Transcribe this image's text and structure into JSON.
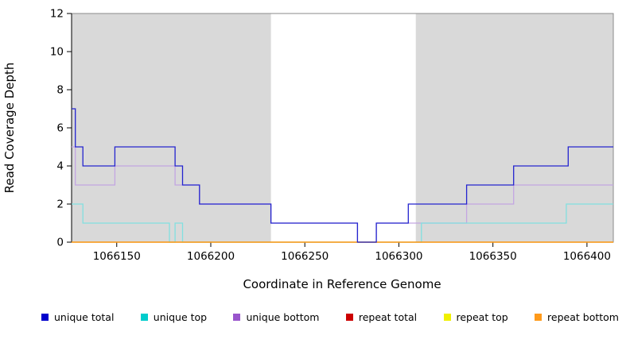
{
  "chart_data": {
    "type": "line",
    "subtype": "step",
    "title": "",
    "xlabel": "Coordinate in Reference Genome",
    "ylabel": "Read Coverage Depth",
    "xlim": [
      1066126,
      1066414
    ],
    "ylim": [
      0,
      12
    ],
    "x_ticks": [
      1066150,
      1066200,
      1066250,
      1066300,
      1066350,
      1066400
    ],
    "y_ticks": [
      0,
      2,
      4,
      6,
      8,
      10,
      12
    ],
    "grid": false,
    "legend_position": "bottom",
    "background_color": "#ffffff",
    "shaded_region_color": "#d9d9d9",
    "shaded_regions": [
      {
        "x0": 1066126,
        "x1": 1066232
      },
      {
        "x0": 1066309,
        "x1": 1066414
      }
    ],
    "series": [
      {
        "name": "unique total",
        "color": "#2424cf",
        "legend_color": "#0000cc",
        "points": [
          [
            1066126,
            7
          ],
          [
            1066128,
            5
          ],
          [
            1066132,
            4
          ],
          [
            1066149,
            5
          ],
          [
            1066181,
            4
          ],
          [
            1066185,
            3
          ],
          [
            1066194,
            2
          ],
          [
            1066232,
            1
          ],
          [
            1066278,
            0
          ],
          [
            1066288,
            1
          ],
          [
            1066305,
            2
          ],
          [
            1066336,
            3
          ],
          [
            1066361,
            4
          ],
          [
            1066390,
            5
          ],
          [
            1066414,
            5
          ]
        ]
      },
      {
        "name": "unique top",
        "color": "#82e0e0",
        "legend_color": "#00cccc",
        "points": [
          [
            1066126,
            2
          ],
          [
            1066132,
            1
          ],
          [
            1066178,
            0
          ],
          [
            1066181,
            1
          ],
          [
            1066185,
            0
          ],
          [
            1066312,
            1
          ],
          [
            1066389,
            2
          ],
          [
            1066414,
            2
          ]
        ]
      },
      {
        "name": "unique bottom",
        "color": "#c3a6e2",
        "legend_color": "#9955cc",
        "points": [
          [
            1066126,
            5
          ],
          [
            1066128,
            3
          ],
          [
            1066149,
            4
          ],
          [
            1066181,
            3
          ],
          [
            1066194,
            2
          ],
          [
            1066232,
            1
          ],
          [
            1066278,
            0
          ],
          [
            1066288,
            1
          ],
          [
            1066336,
            2
          ],
          [
            1066361,
            3
          ],
          [
            1066414,
            3
          ]
        ]
      },
      {
        "name": "repeat total",
        "color": "#cc2222",
        "legend_color": "#cc0000",
        "points": [
          [
            1066126,
            0
          ],
          [
            1066414,
            0
          ]
        ]
      },
      {
        "name": "repeat top",
        "color": "#f0f000",
        "legend_color": "#f0f000",
        "points": [
          [
            1066126,
            0
          ],
          [
            1066414,
            0
          ]
        ]
      },
      {
        "name": "repeat bottom",
        "color": "#ff9a1a",
        "legend_color": "#ff9a1a",
        "points": [
          [
            1066126,
            0
          ],
          [
            1066414,
            0
          ]
        ]
      }
    ],
    "draw_order": [
      "unique bottom",
      "unique top",
      "repeat total",
      "repeat top",
      "repeat bottom",
      "unique total"
    ]
  }
}
